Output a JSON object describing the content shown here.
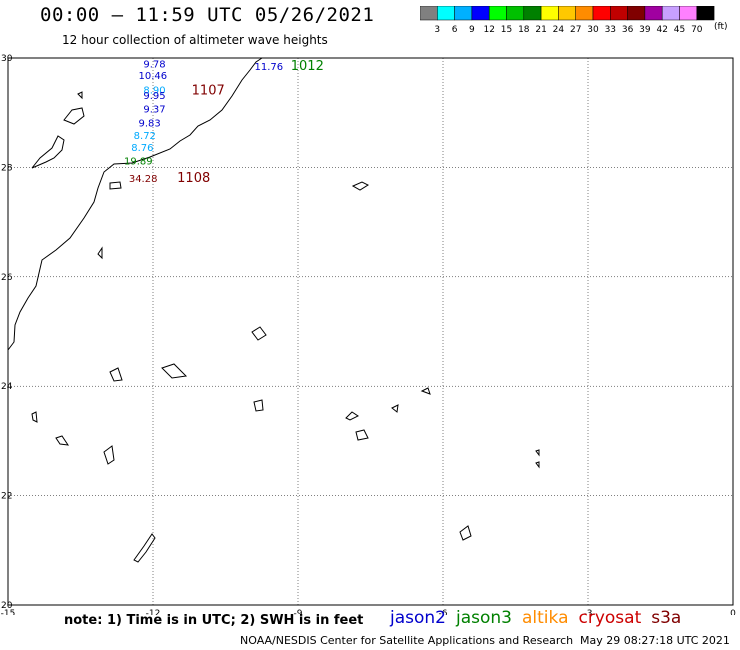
{
  "header": {
    "title": "00:00 – 11:59 UTC 05/26/2021",
    "subtitle": "12 hour collection of altimeter wave heights"
  },
  "color_scale": {
    "unit": "(ft)",
    "bins": [
      {
        "label": "3",
        "color": "#808080"
      },
      {
        "label": "6",
        "color": "#00ffff"
      },
      {
        "label": "9",
        "color": "#00b0ff"
      },
      {
        "label": "12",
        "color": "#0000ff"
      },
      {
        "label": "15",
        "color": "#00ff00"
      },
      {
        "label": "18",
        "color": "#00c000"
      },
      {
        "label": "21",
        "color": "#008000"
      },
      {
        "label": "24",
        "color": "#ffff00"
      },
      {
        "label": "27",
        "color": "#ffc800"
      },
      {
        "label": "30",
        "color": "#ff8c00"
      },
      {
        "label": "33",
        "color": "#ff0000"
      },
      {
        "label": "36",
        "color": "#c00000"
      },
      {
        "label": "39",
        "color": "#800000"
      },
      {
        "label": "42",
        "color": "#a000a0"
      },
      {
        "label": "45",
        "color": "#c8a0ff"
      },
      {
        "label": "70",
        "color": "#ff80ff"
      },
      {
        "label": "",
        "color": "#000000"
      }
    ]
  },
  "map": {
    "lon_ticks": [
      "-15",
      "-12",
      "-9",
      "-6",
      "-3",
      "0"
    ],
    "lat_ticks": [
      "30",
      "28",
      "26",
      "24",
      "22",
      "20"
    ],
    "bounds": {
      "lon_min": -15,
      "lon_max": 0,
      "lat_min": 20,
      "lat_max": 30
    },
    "track_labels": [
      {
        "text": "9.78",
        "color": "#0000cc",
        "lon": -12.2,
        "lat": 29.83
      },
      {
        "text": "10.46",
        "color": "#0000cc",
        "lon": -12.3,
        "lat": 29.62
      },
      {
        "text": "8.90",
        "color": "#00aaff",
        "lon": -12.2,
        "lat": 29.35
      },
      {
        "text": "9.95",
        "color": "#0000cc",
        "lon": -12.2,
        "lat": 29.25
      },
      {
        "text": "9.37",
        "color": "#0000cc",
        "lon": -12.2,
        "lat": 29.0
      },
      {
        "text": "9.83",
        "color": "#0000cc",
        "lon": -12.3,
        "lat": 28.75
      },
      {
        "text": "8.72",
        "color": "#00aaff",
        "lon": -12.4,
        "lat": 28.52
      },
      {
        "text": "8.76",
        "color": "#00aaff",
        "lon": -12.45,
        "lat": 28.3
      },
      {
        "text": "19.89",
        "color": "#008000",
        "lon": -12.6,
        "lat": 28.05
      },
      {
        "text": "34.28",
        "color": "#800000",
        "lon": -12.5,
        "lat": 27.73
      },
      {
        "text": "11.76",
        "color": "#0000cc",
        "lon": -9.9,
        "lat": 29.78
      }
    ],
    "pass_labels": [
      {
        "text": "1012",
        "color": "#008000",
        "lon": -9.15,
        "lat": 29.78
      },
      {
        "text": "1107",
        "color": "#800000",
        "lon": -11.2,
        "lat": 29.33
      },
      {
        "text": "1108",
        "color": "#800000",
        "lon": -11.5,
        "lat": 27.73
      }
    ]
  },
  "footer": {
    "note": "note:  1) Time is in UTC;  2) SWH is in feet",
    "satellites": [
      {
        "name": "jason2",
        "color": "#0000cc"
      },
      {
        "name": "jason3",
        "color": "#008000"
      },
      {
        "name": "altika",
        "color": "#ff8c00"
      },
      {
        "name": "cryosat",
        "color": "#cc0000"
      },
      {
        "name": "s3a",
        "color": "#800000"
      }
    ],
    "credit": "NOAA/NESDIS Center for Satellite Applications and Research",
    "timestamp": "May 29 08:27:18 UTC 2021"
  }
}
